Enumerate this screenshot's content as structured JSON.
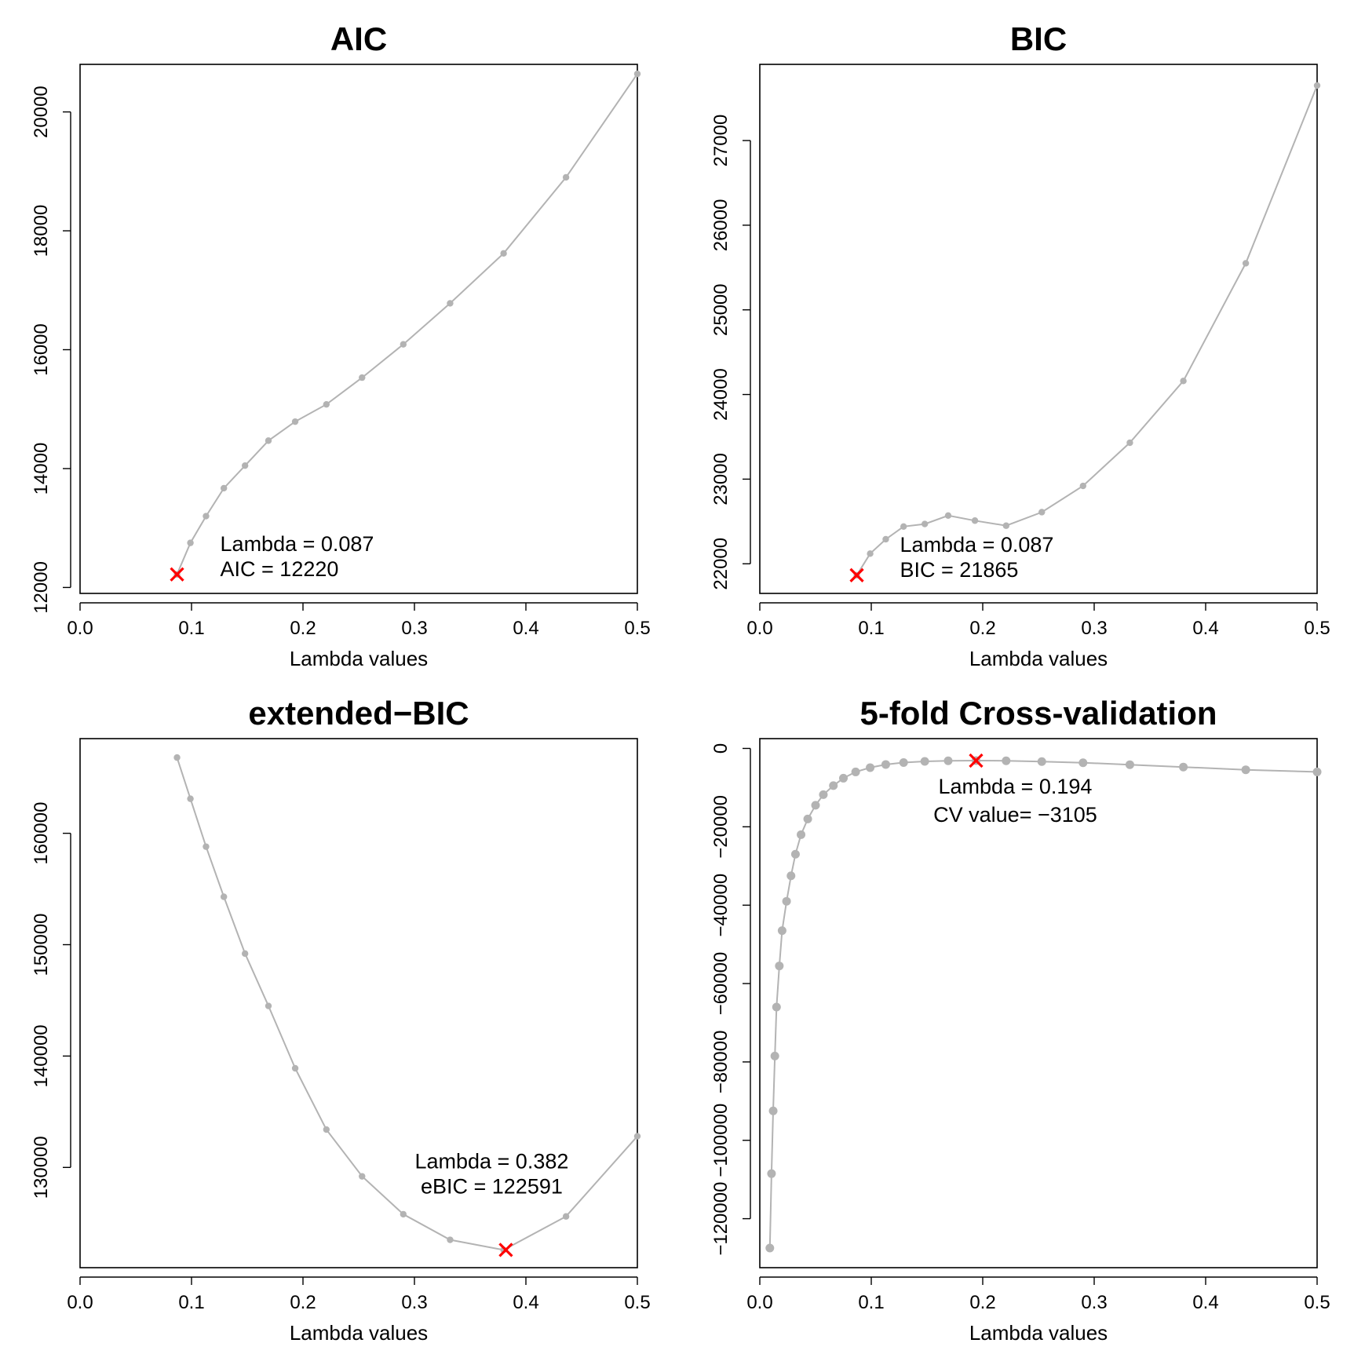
{
  "colors": {
    "line": "#b3b3b3",
    "point": "#b3b3b3",
    "marker": "#ff0000",
    "axis": "#000000"
  },
  "chart_data": [
    {
      "type": "line",
      "title": "AIC",
      "xlabel": "Lambda values",
      "ylabel": "",
      "xlim": [
        0,
        0.5
      ],
      "ylim": [
        11900,
        20800
      ],
      "xticks": [
        0.0,
        0.1,
        0.2,
        0.3,
        0.4,
        0.5
      ],
      "xtick_labels": [
        "0.0",
        "0.1",
        "0.2",
        "0.3",
        "0.4",
        "0.5"
      ],
      "yticks": [
        12000,
        14000,
        16000,
        18000,
        20000
      ],
      "ytick_labels": [
        "12000",
        "14000",
        "16000",
        "18000",
        "20000"
      ],
      "x": [
        0.087,
        0.099,
        0.113,
        0.129,
        0.148,
        0.169,
        0.193,
        0.221,
        0.253,
        0.29,
        0.332,
        0.38,
        0.436,
        0.5
      ],
      "y": [
        12220,
        12750,
        13200,
        13670,
        14050,
        14470,
        14790,
        15080,
        15530,
        16090,
        16780,
        17620,
        18900,
        20640
      ],
      "point_size": "small",
      "selected": {
        "x": 0.087,
        "y": 12220
      },
      "annotation": [
        "Lambda = 0.087",
        "AIC = 12220"
      ],
      "annotation_align": "left"
    },
    {
      "type": "line",
      "title": "BIC",
      "xlabel": "Lambda values",
      "ylabel": "",
      "xlim": [
        0,
        0.5
      ],
      "ylim": [
        21650,
        27900
      ],
      "xticks": [
        0.0,
        0.1,
        0.2,
        0.3,
        0.4,
        0.5
      ],
      "xtick_labels": [
        "0.0",
        "0.1",
        "0.2",
        "0.3",
        "0.4",
        "0.5"
      ],
      "yticks": [
        22000,
        23000,
        24000,
        25000,
        26000,
        27000
      ],
      "ytick_labels": [
        "22000",
        "23000",
        "24000",
        "25000",
        "26000",
        "27000"
      ],
      "x": [
        0.087,
        0.099,
        0.113,
        0.129,
        0.148,
        0.169,
        0.193,
        0.221,
        0.253,
        0.29,
        0.332,
        0.38,
        0.436,
        0.5
      ],
      "y": [
        21865,
        22120,
        22290,
        22440,
        22470,
        22570,
        22510,
        22450,
        22610,
        22920,
        23430,
        24160,
        25550,
        27650
      ],
      "point_size": "small",
      "selected": {
        "x": 0.087,
        "y": 21865
      },
      "annotation": [
        "Lambda = 0.087",
        "BIC = 21865"
      ],
      "annotation_align": "left"
    },
    {
      "type": "line",
      "title": "extended−BIC",
      "xlabel": "Lambda values",
      "ylabel": "",
      "xlim": [
        0,
        0.5
      ],
      "ylim": [
        121000,
        168500
      ],
      "xticks": [
        0.0,
        0.1,
        0.2,
        0.3,
        0.4,
        0.5
      ],
      "xtick_labels": [
        "0.0",
        "0.1",
        "0.2",
        "0.3",
        "0.4",
        "0.5"
      ],
      "yticks": [
        130000,
        140000,
        150000,
        160000
      ],
      "ytick_labels": [
        "130000",
        "140000",
        "150000",
        "160000"
      ],
      "x": [
        0.087,
        0.099,
        0.113,
        0.129,
        0.148,
        0.169,
        0.193,
        0.221,
        0.253,
        0.29,
        0.332,
        0.38,
        0.436,
        0.5
      ],
      "y": [
        166800,
        163100,
        158800,
        154300,
        149200,
        144500,
        138900,
        133400,
        129200,
        125800,
        123500,
        122591,
        125600,
        132800
      ],
      "point_size": "small",
      "selected": {
        "x": 0.382,
        "y": 122591
      },
      "annotation": [
        "Lambda = 0.382",
        "eBIC = 122591"
      ],
      "annotation_align": "center"
    },
    {
      "type": "line",
      "title": "5-fold Cross-validation",
      "xlabel": "Lambda values",
      "ylabel": "",
      "xlim": [
        0,
        0.5
      ],
      "ylim": [
        -132500,
        2500
      ],
      "xticks": [
        0.0,
        0.1,
        0.2,
        0.3,
        0.4,
        0.5
      ],
      "xtick_labels": [
        "0.0",
        "0.1",
        "0.2",
        "0.3",
        "0.4",
        "0.5"
      ],
      "yticks": [
        0,
        -20000,
        -40000,
        -60000,
        -80000,
        -100000,
        -120000
      ],
      "ytick_labels": [
        "0",
        "−20000",
        "−40000",
        "−60000",
        "−80000",
        "−100000",
        "−120000"
      ],
      "x": [
        0.009,
        0.0105,
        0.012,
        0.0135,
        0.015,
        0.0175,
        0.02,
        0.024,
        0.028,
        0.032,
        0.037,
        0.043,
        0.05,
        0.057,
        0.066,
        0.075,
        0.086,
        0.099,
        0.113,
        0.129,
        0.148,
        0.169,
        0.194,
        0.221,
        0.253,
        0.29,
        0.332,
        0.38,
        0.436,
        0.5
      ],
      "y": [
        -127500,
        -108500,
        -92500,
        -78500,
        -66000,
        -55500,
        -46500,
        -39000,
        -32500,
        -27000,
        -22000,
        -18000,
        -14500,
        -11800,
        -9500,
        -7600,
        -6000,
        -4900,
        -4100,
        -3600,
        -3300,
        -3150,
        -3105,
        -3150,
        -3350,
        -3650,
        -4150,
        -4750,
        -5450,
        -6000
      ],
      "point_size": "large",
      "selected": {
        "x": 0.194,
        "y": -3105
      },
      "annotation": [
        "Lambda = 0.194",
        "CV value= −3105"
      ],
      "annotation_align": "center"
    }
  ]
}
